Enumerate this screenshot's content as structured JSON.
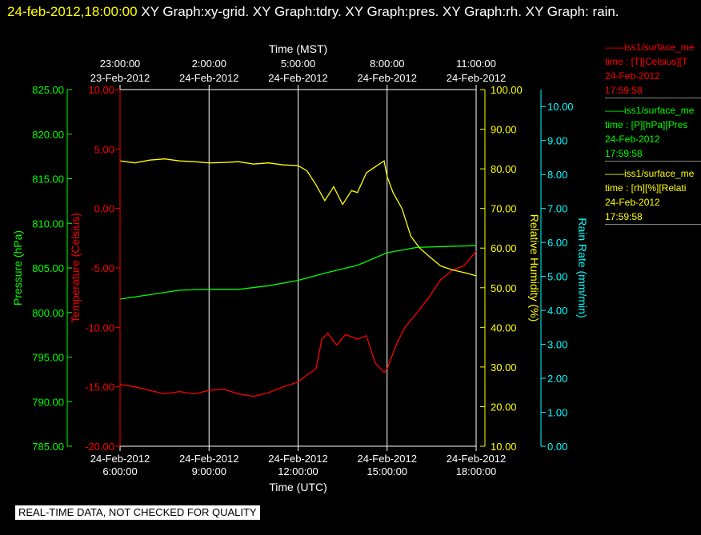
{
  "header": {
    "timestamp": "24-feb-2012,18:00:00",
    "graphs": "XY Graph:xy-grid.  XY Graph:tdry.  XY Graph:pres.  XY Graph:rh.  XY Graph:",
    "graphs_cont": "rain."
  },
  "legend": [
    {
      "line1": "iss1/surface_me",
      "line2": "time : [T][Celsius][T",
      "line3": "24-Feb-2012",
      "line4": "17:59:58",
      "color": "#ff0000"
    },
    {
      "line1": "iss1/surface_me",
      "line2": "time : [P][hPa][Pres",
      "line3": "24-Feb-2012",
      "line4": "17:59:58",
      "color": "#00ff00"
    },
    {
      "line1": "iss1/surface_me",
      "line2": "time : [rh][%][Relati",
      "line3": "24-Feb-2012",
      "line4": "17:59:58",
      "color": "#ffff00"
    }
  ],
  "disclaimer": "REAL-TIME DATA, NOT CHECKED FOR QUALITY",
  "chart_data": {
    "type": "line",
    "x_range_utc_hours": [
      6,
      18
    ],
    "grid": true,
    "xlabel_bottom": "Time (UTC)",
    "xlabel_top": "Time (MST)",
    "bottom_ticks": [
      {
        "t": 6,
        "date": "24-Feb-2012",
        "time": "6:00:00"
      },
      {
        "t": 9,
        "date": "24-Feb-2012",
        "time": "9:00:00"
      },
      {
        "t": 12,
        "date": "24-Feb-2012",
        "time": "12:00:00"
      },
      {
        "t": 15,
        "date": "24-Feb-2012",
        "time": "15:00:00"
      },
      {
        "t": 18,
        "date": "24-Feb-2012",
        "time": "18:00:00"
      }
    ],
    "top_ticks": [
      {
        "t": 6,
        "time": "23:00:00",
        "date": "23-Feb-2012"
      },
      {
        "t": 9,
        "time": "2:00:00",
        "date": "24-Feb-2012"
      },
      {
        "t": 12,
        "time": "5:00:00",
        "date": "24-Feb-2012"
      },
      {
        "t": 15,
        "time": "8:00:00",
        "date": "24-Feb-2012"
      },
      {
        "t": 18,
        "time": "11:00:00",
        "date": "24-Feb-2012"
      }
    ],
    "axes": {
      "pressure": {
        "label": "Pressure (hPa)",
        "color": "#00ff00",
        "min": 785,
        "max": 825,
        "ticks": [
          "785.00",
          "790.00",
          "795.00",
          "800.00",
          "805.00",
          "810.00",
          "815.00",
          "820.00",
          "825.00"
        ]
      },
      "temperature": {
        "label": "Temperature (Celsius)",
        "color": "#ff0000",
        "min": -20,
        "max": 10,
        "ticks": [
          "-20.00",
          "-15.00",
          "-10.00",
          "-5.00",
          "0.00",
          "5.00",
          "10.00"
        ]
      },
      "rh": {
        "label": "Relative Humidity (%)",
        "color": "#ffff00",
        "min": 10,
        "max": 100,
        "ticks": [
          "10.00",
          "20.00",
          "30.00",
          "40.00",
          "50.00",
          "60.00",
          "70.00",
          "80.00",
          "90.00",
          "100.00"
        ]
      },
      "rain": {
        "label": "Rain Rate (mm/min)",
        "color": "#00ffff",
        "min": 0,
        "max": 10.5,
        "ticks": [
          "0.00",
          "1.00",
          "2.00",
          "3.00",
          "4.00",
          "5.00",
          "6.00",
          "7.00",
          "8.00",
          "9.00",
          "10.00"
        ]
      }
    },
    "series": [
      {
        "name": "Temperature",
        "axis": "temperature",
        "color": "#ff0000",
        "x": [
          6,
          6.5,
          7,
          7.5,
          8,
          8.5,
          9,
          9.5,
          10,
          10.5,
          11,
          11.5,
          12,
          12.3,
          12.6,
          12.8,
          13,
          13.3,
          13.6,
          14,
          14.3,
          14.6,
          14.9,
          15,
          15.3,
          15.6,
          16,
          16.4,
          16.8,
          17.2,
          17.6,
          18
        ],
        "y": [
          -14.8,
          -15.0,
          -15.3,
          -15.6,
          -15.4,
          -15.6,
          -15.3,
          -15.2,
          -15.6,
          -15.8,
          -15.5,
          -15.0,
          -14.6,
          -14.0,
          -13.5,
          -11.0,
          -10.5,
          -11.5,
          -10.6,
          -11.0,
          -10.7,
          -13.0,
          -13.8,
          -13.5,
          -11.5,
          -10.0,
          -8.8,
          -7.5,
          -6.0,
          -5.2,
          -4.8,
          -3.6
        ]
      },
      {
        "name": "Pressure",
        "axis": "pressure",
        "color": "#00ff00",
        "x": [
          6,
          7,
          8,
          9,
          10,
          11,
          12,
          13,
          14,
          15,
          16,
          17,
          18
        ],
        "y": [
          801.5,
          802.0,
          802.5,
          802.6,
          802.6,
          803.0,
          803.6,
          804.5,
          805.3,
          806.7,
          807.3,
          807.4,
          807.5
        ]
      },
      {
        "name": "Relative Humidity",
        "axis": "rh",
        "color": "#ffff00",
        "x": [
          6,
          6.5,
          7,
          7.5,
          8,
          8.5,
          9,
          9.5,
          10,
          10.5,
          11,
          11.5,
          12,
          12.3,
          12.6,
          12.9,
          13.2,
          13.5,
          13.8,
          14,
          14.3,
          14.6,
          14.9,
          15,
          15.2,
          15.5,
          15.8,
          16.1,
          16.4,
          16.8,
          17.2,
          17.6,
          18
        ],
        "y": [
          82.0,
          81.5,
          82.2,
          82.5,
          82.0,
          81.8,
          81.5,
          81.6,
          81.8,
          81.2,
          81.5,
          81.0,
          80.8,
          79.5,
          76.0,
          72.0,
          75.5,
          71.0,
          74.5,
          74.0,
          79.0,
          80.5,
          82.0,
          78.0,
          74.0,
          70.0,
          63.0,
          60.0,
          58.0,
          55.5,
          54.5,
          53.8,
          53.0
        ]
      },
      {
        "name": "Rain Rate",
        "axis": "rain",
        "color": "#00ffff",
        "x": [],
        "y": []
      }
    ]
  }
}
